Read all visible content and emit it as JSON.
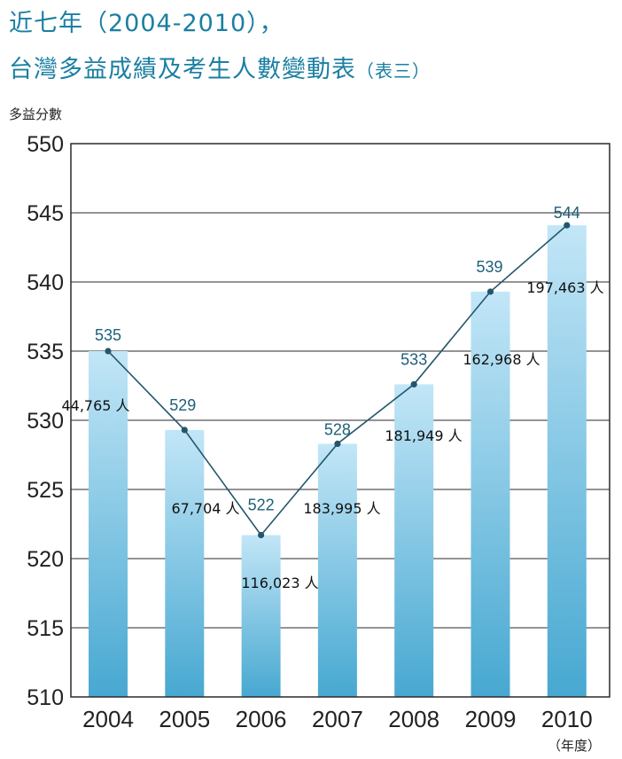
{
  "title_line1": "近七年（2004-2010），",
  "title_line2": "台灣多益成績及考生人數變動表",
  "title_suffix": "（表三）",
  "y_axis_label": "多益分數",
  "x_axis_unit": "（年度）",
  "colors": {
    "title": "#1b7fa2",
    "bar_top": "#c2e6f7",
    "bar_bottom": "#47a8d1",
    "line": "#23566c",
    "value_label": "#1e5f78"
  },
  "chart_data": {
    "type": "bar",
    "categories": [
      "2004",
      "2005",
      "2006",
      "2007",
      "2008",
      "2009",
      "2010"
    ],
    "values": [
      535,
      529,
      522,
      528,
      533,
      539,
      544
    ],
    "bar_value_labels": [
      535,
      529,
      522,
      528,
      533,
      539,
      544
    ],
    "plotted_values": [
      535.0,
      529.3,
      521.7,
      528.3,
      532.6,
      539.3,
      544.1
    ],
    "examinees": [
      "44,765 人",
      "67,704 人",
      "116,023 人",
      "183,995 人",
      "181,949 人",
      "162,968 人",
      "197,463 人"
    ],
    "ylim": [
      510,
      550
    ],
    "yticks": [
      510,
      515,
      520,
      525,
      530,
      535,
      540,
      545,
      550
    ],
    "grid": true,
    "overlay": "line connecting bar tops"
  }
}
